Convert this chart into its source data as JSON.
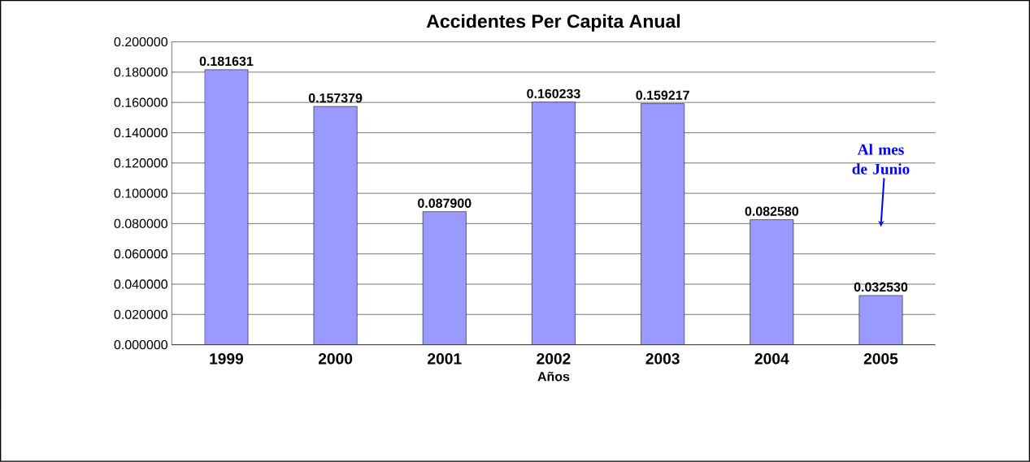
{
  "chart_data": {
    "type": "bar",
    "title": "Accidentes Per Capita Anual",
    "xlabel": "Años",
    "categories": [
      "1999",
      "2000",
      "2001",
      "2002",
      "2003",
      "2004",
      "2005"
    ],
    "values": [
      0.181631,
      0.157379,
      0.0879,
      0.160233,
      0.159217,
      0.08258,
      0.03253
    ],
    "value_labels": [
      "0.181631",
      "0.157379",
      "0.087900",
      "0.160233",
      "0.159217",
      "0.082580",
      "0.032530"
    ],
    "color": "#9999ff",
    "ylim": [
      0,
      0.2
    ],
    "yticks": [
      {
        "value": 0,
        "label": "0.000000"
      },
      {
        "value": 0.02,
        "label": "0.020000"
      },
      {
        "value": 0.04,
        "label": "0.040000"
      },
      {
        "value": 0.06,
        "label": "0.060000"
      },
      {
        "value": 0.08,
        "label": "0.080000"
      },
      {
        "value": 0.1,
        "label": "0.100000"
      },
      {
        "value": 0.12,
        "label": "0.120000"
      },
      {
        "value": 0.14,
        "label": "0.140000"
      },
      {
        "value": 0.16,
        "label": "0.160000"
      },
      {
        "value": 0.18,
        "label": "0.180000"
      },
      {
        "value": 0.2,
        "label": "0.200000"
      }
    ],
    "grid": "y",
    "annotations": [
      "Al mes de Junio"
    ]
  }
}
